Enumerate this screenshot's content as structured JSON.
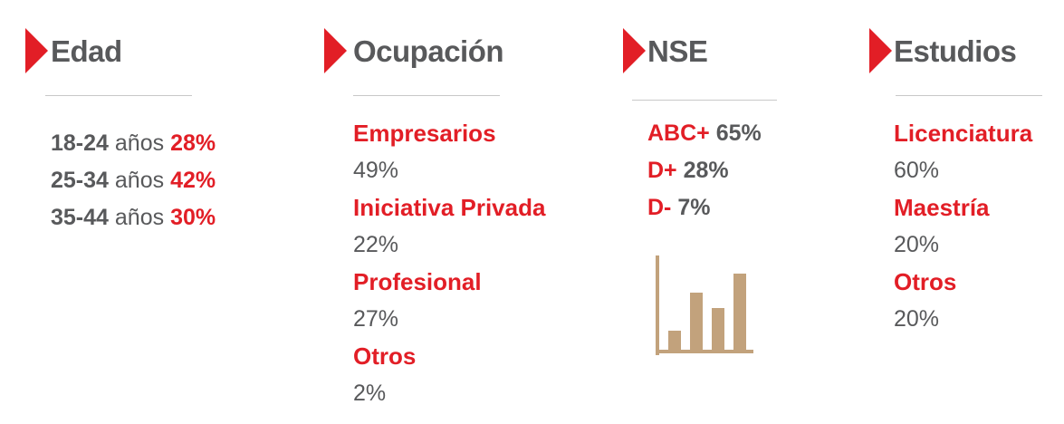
{
  "edad": {
    "title": "Edad",
    "rows": [
      {
        "range": "18-24",
        "unit": "años",
        "pct": "28%"
      },
      {
        "range": "25-34",
        "unit": "años",
        "pct": "42%"
      },
      {
        "range": "35-44",
        "unit": "años",
        "pct": "30%"
      }
    ]
  },
  "ocupacion": {
    "title": "Ocupación",
    "items": [
      {
        "label": "Empresarios",
        "pct": "49%"
      },
      {
        "label": "Iniciativa Privada",
        "pct": "22%"
      },
      {
        "label": "Profesional",
        "pct": "27%"
      },
      {
        "label": "Otros",
        "pct": "2%"
      }
    ]
  },
  "nse": {
    "title": "NSE",
    "items": [
      {
        "label": "ABC+",
        "pct": "65%"
      },
      {
        "label": "D+",
        "pct": "28%"
      },
      {
        "label": "D-",
        "pct": "7%"
      }
    ],
    "icon": "bar-chart-icon",
    "icon_bar_levels": [
      0.25,
      0.75,
      0.55,
      1.0
    ]
  },
  "estudios": {
    "title": "Estudios",
    "items": [
      {
        "label": "Licenciatura",
        "pct": "60%"
      },
      {
        "label": "Maestría",
        "pct": "20%"
      },
      {
        "label": "Otros",
        "pct": "20%"
      }
    ]
  },
  "colors": {
    "accent": "#e21e26",
    "text": "#58595b",
    "divider": "#c8c8c8",
    "icon": "#c2a27c"
  }
}
